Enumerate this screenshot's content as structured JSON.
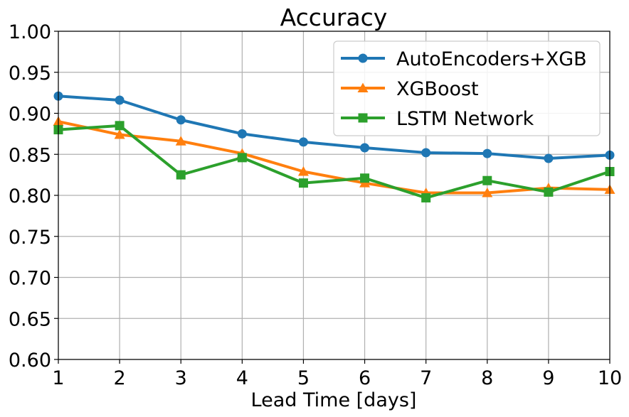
{
  "chart_data": {
    "type": "line",
    "title": "Accuracy",
    "xlabel": "Lead Time [days]",
    "ylabel": "",
    "x": [
      1,
      2,
      3,
      4,
      5,
      6,
      7,
      8,
      9,
      10
    ],
    "xlim": [
      1,
      10
    ],
    "ylim": [
      0.6,
      1.0
    ],
    "xticks": [
      "1",
      "2",
      "3",
      "4",
      "5",
      "6",
      "7",
      "8",
      "9",
      "10"
    ],
    "yticks": [
      "0.60",
      "0.65",
      "0.70",
      "0.75",
      "0.80",
      "0.85",
      "0.90",
      "0.95",
      "1.00"
    ],
    "grid": true,
    "legend_position": "top-right",
    "series": [
      {
        "name": "AutoEncoders+XGB",
        "color": "#1f77b4",
        "marker": "circle",
        "values": [
          0.921,
          0.916,
          0.892,
          0.875,
          0.865,
          0.858,
          0.852,
          0.851,
          0.845,
          0.849
        ]
      },
      {
        "name": "XGBoost",
        "color": "#ff7f0e",
        "marker": "triangle",
        "values": [
          0.89,
          0.874,
          0.866,
          0.851,
          0.829,
          0.815,
          0.803,
          0.803,
          0.809,
          0.807
        ]
      },
      {
        "name": "LSTM Network",
        "color": "#2ca02c",
        "marker": "square",
        "values": [
          0.88,
          0.885,
          0.825,
          0.846,
          0.815,
          0.821,
          0.797,
          0.818,
          0.804,
          0.829
        ]
      }
    ]
  }
}
